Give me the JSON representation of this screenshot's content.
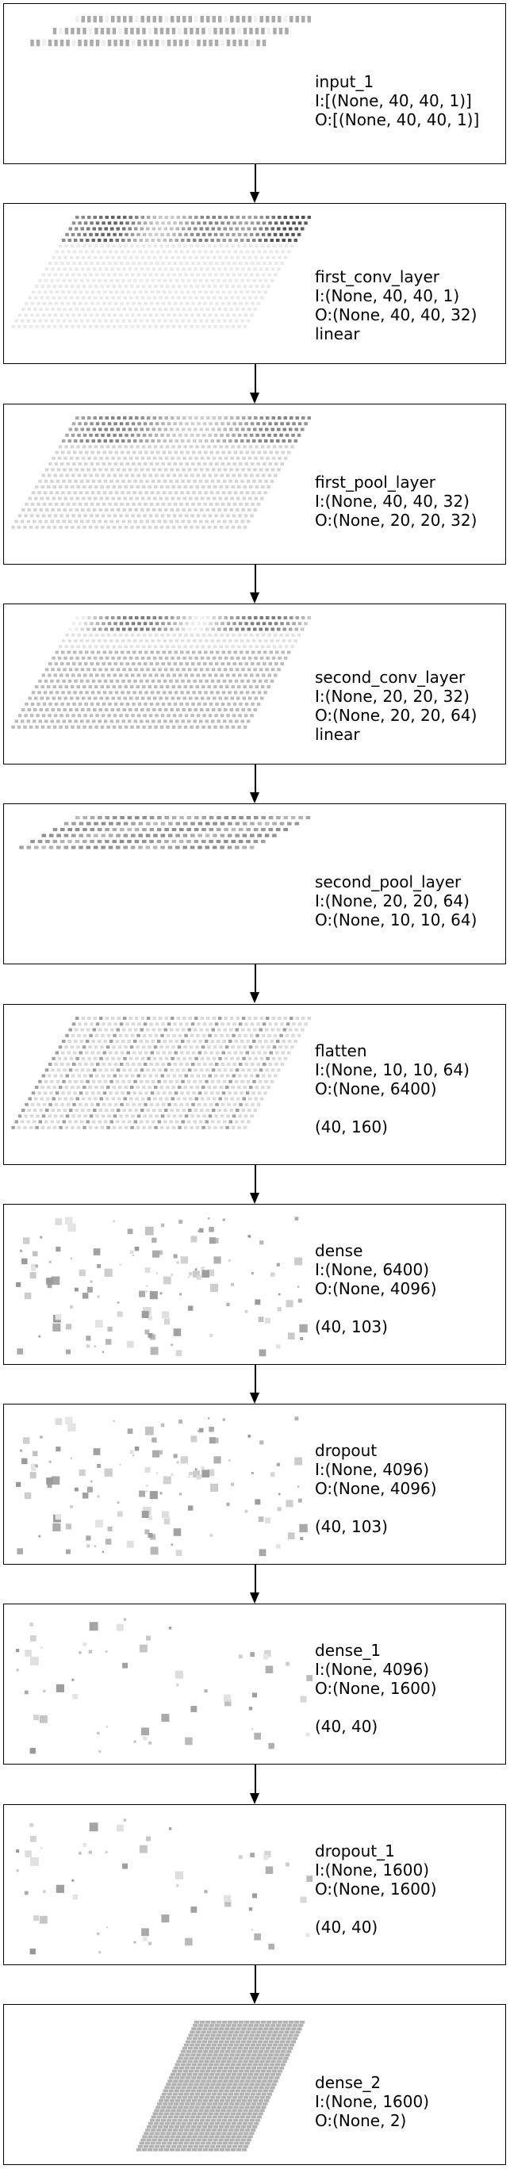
{
  "layers": [
    {
      "id": "input_1",
      "lines": [
        "input_1",
        "I:[(None, 40, 40, 1)]",
        "O:[(None, 40, 40, 1)]"
      ],
      "viz": "grid",
      "rows": 3,
      "cols": 40,
      "opacity": 0.35,
      "darkness": "sparse"
    },
    {
      "id": "first_conv_layer",
      "lines": [
        "first_conv_layer",
        "I:(None, 40, 40, 1)",
        "O:(None, 40, 40, 32)",
        "linear"
      ],
      "viz": "grid",
      "rows": 20,
      "cols": 40,
      "opacity": 0.25,
      "darkness": "conv1"
    },
    {
      "id": "first_pool_layer",
      "lines": [
        "first_pool_layer",
        "I:(None, 40, 40, 32)",
        "O:(None, 20, 20, 32)"
      ],
      "viz": "grid",
      "rows": 20,
      "cols": 40,
      "opacity": 0.3,
      "darkness": "pool"
    },
    {
      "id": "second_conv_layer",
      "lines": [
        "second_conv_layer",
        "I:(None, 20, 20, 32)",
        "O:(None, 20, 20, 64)",
        "linear"
      ],
      "viz": "grid",
      "rows": 20,
      "cols": 40,
      "opacity": 0.35,
      "darkness": "conv2"
    },
    {
      "id": "second_pool_layer",
      "lines": [
        "second_pool_layer",
        "I:(None, 20, 20, 64)",
        "O:(None, 10, 10, 64)"
      ],
      "viz": "grid",
      "rows": 6,
      "cols": 32,
      "opacity": 0.35,
      "darkness": "pool2"
    },
    {
      "id": "flatten",
      "lines": [
        "flatten",
        "I:(None, 10, 10, 64)",
        "O:(None, 6400)",
        "",
        "(40, 160)"
      ],
      "viz": "grid",
      "rows": 20,
      "cols": 40,
      "opacity": 0.3,
      "darkness": "flat"
    },
    {
      "id": "dense",
      "lines": [
        "dense",
        "I:(None, 6400)",
        "O:(None, 4096)",
        "",
        "(40, 103)"
      ],
      "viz": "scatter",
      "count": 130,
      "seed": 7
    },
    {
      "id": "dropout",
      "lines": [
        "dropout",
        "I:(None, 4096)",
        "O:(None, 4096)",
        "",
        "(40, 103)"
      ],
      "viz": "scatter",
      "count": 130,
      "seed": 7
    },
    {
      "id": "dense_1",
      "lines": [
        "dense_1",
        "I:(None, 4096)",
        "O:(None, 1600)",
        "",
        "(40, 40)"
      ],
      "viz": "scatter",
      "count": 55,
      "seed": 19
    },
    {
      "id": "dropout_1",
      "lines": [
        "dropout_1",
        "I:(None, 1600)",
        "O:(None, 1600)",
        "",
        "(40, 40)"
      ],
      "viz": "scatter",
      "count": 55,
      "seed": 19
    },
    {
      "id": "dense_2",
      "lines": [
        "dense_2",
        "I:(None, 1600)",
        "O:(None, 2)"
      ],
      "viz": "dense-block",
      "rows": 40,
      "cols": 20,
      "opacity": 0.45
    }
  ]
}
